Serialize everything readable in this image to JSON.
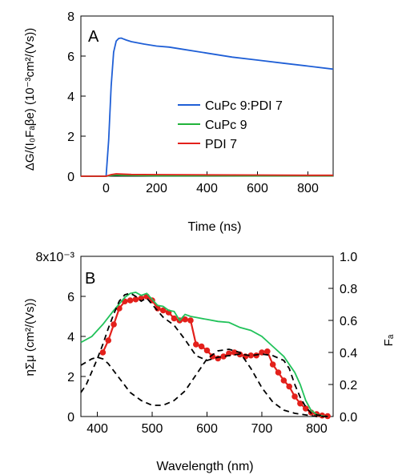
{
  "chart_data": [
    {
      "panel_label": "A",
      "type": "line",
      "xlabel": "Time (ns)",
      "ylabel": "ΔG/(I₀Fₐβe) (10⁻³cm²/(Vs))",
      "xlim": [
        -100,
        900
      ],
      "ylim": [
        0,
        8
      ],
      "xticks": [
        0,
        200,
        400,
        600,
        800
      ],
      "yticks": [
        0,
        2,
        4,
        6,
        8
      ],
      "legend_position": "center-right",
      "series": [
        {
          "name": "CuPc 9:PDI 7",
          "color": "#1f5fd6",
          "x": [
            -100,
            0,
            10,
            20,
            30,
            40,
            50,
            60,
            70,
            80,
            100,
            150,
            200,
            250,
            300,
            400,
            500,
            600,
            700,
            800,
            900
          ],
          "y": [
            0,
            0,
            1.8,
            4.5,
            6.2,
            6.75,
            6.88,
            6.9,
            6.85,
            6.8,
            6.72,
            6.6,
            6.5,
            6.45,
            6.35,
            6.15,
            5.95,
            5.8,
            5.65,
            5.5,
            5.35
          ]
        },
        {
          "name": "CuPc 9",
          "color": "#21b33a",
          "x": [
            -100,
            0,
            20,
            40,
            60,
            100,
            200,
            400,
            600,
            800,
            900
          ],
          "y": [
            0,
            0,
            0.04,
            0.06,
            0.05,
            0.04,
            0.03,
            0.03,
            0.02,
            0.02,
            0.02
          ]
        },
        {
          "name": "PDI 7",
          "color": "#e3201b",
          "x": [
            -100,
            0,
            20,
            40,
            60,
            100,
            200,
            400,
            600,
            800,
            900
          ],
          "y": [
            0,
            0,
            0.08,
            0.12,
            0.11,
            0.09,
            0.08,
            0.07,
            0.06,
            0.05,
            0.05
          ]
        }
      ]
    },
    {
      "panel_label": "B",
      "type": "line",
      "xlabel": "Wavelength (nm)",
      "ylabel": "ηΣμ (cm²/(Vs))",
      "ylabel_right": "Fₐ",
      "xlim": [
        370,
        830
      ],
      "ylim": [
        0,
        0.008
      ],
      "ylim_right": [
        0,
        1.0
      ],
      "xticks": [
        400,
        500,
        600,
        700,
        800
      ],
      "yticks": [
        0,
        2,
        4,
        6,
        8
      ],
      "ytick_labels": [
        "0",
        "2",
        "4",
        "6",
        "8x10⁻³"
      ],
      "yticks_right": [
        "0.0",
        "0.2",
        "0.4",
        "0.6",
        "0.8",
        "1.0"
      ],
      "series": [
        {
          "name": "",
          "style": "line-markers",
          "color": "#e3201b",
          "axis": "left",
          "x": [
            410,
            420,
            430,
            440,
            450,
            460,
            470,
            480,
            490,
            500,
            510,
            520,
            530,
            540,
            550,
            560,
            570,
            580,
            590,
            600,
            610,
            620,
            630,
            640,
            650,
            660,
            670,
            680,
            690,
            700,
            710,
            720,
            730,
            740,
            750,
            760,
            770,
            780,
            790,
            800,
            810,
            820
          ],
          "y": [
            3.2,
            3.8,
            4.6,
            5.4,
            5.75,
            5.8,
            5.85,
            5.9,
            6.0,
            5.8,
            5.4,
            5.3,
            5.2,
            4.9,
            4.8,
            4.85,
            4.8,
            3.6,
            3.5,
            3.3,
            3.0,
            2.9,
            3.0,
            3.15,
            3.2,
            3.1,
            3.0,
            3.05,
            3.05,
            3.2,
            3.25,
            2.6,
            2.2,
            1.8,
            1.5,
            1.0,
            0.65,
            0.4,
            0.2,
            0.12,
            0.05,
            0.02
          ]
        },
        {
          "name": "",
          "style": "solid",
          "color": "#21c25a",
          "axis": "left",
          "x": [
            370,
            390,
            410,
            430,
            450,
            460,
            470,
            480,
            490,
            500,
            510,
            520,
            530,
            540,
            550,
            560,
            570,
            580,
            600,
            620,
            640,
            660,
            680,
            700,
            720,
            740,
            760,
            770,
            780,
            790,
            800,
            810,
            820
          ],
          "y": [
            3.7,
            4.0,
            4.6,
            5.3,
            5.95,
            6.15,
            6.2,
            6.05,
            6.15,
            5.85,
            5.55,
            5.5,
            5.3,
            5.25,
            4.8,
            5.1,
            5.0,
            4.95,
            4.85,
            4.75,
            4.7,
            4.45,
            4.3,
            4.0,
            3.5,
            3.0,
            2.2,
            1.6,
            0.8,
            0.3,
            0.1,
            0.03,
            0.0
          ]
        },
        {
          "name": "",
          "style": "dashed",
          "color": "#000000",
          "axis": "right",
          "x": [
            370,
            380,
            390,
            400,
            410,
            420,
            430,
            440,
            450,
            460,
            470,
            480,
            490,
            500,
            520,
            540,
            560,
            580,
            600,
            620,
            640,
            660,
            680,
            700,
            720,
            740,
            750,
            760,
            770,
            780,
            790,
            800,
            820
          ],
          "y": [
            0.15,
            0.2,
            0.28,
            0.36,
            0.45,
            0.55,
            0.64,
            0.72,
            0.76,
            0.77,
            0.75,
            0.72,
            0.74,
            0.7,
            0.62,
            0.57,
            0.48,
            0.38,
            0.35,
            0.37,
            0.38,
            0.39,
            0.38,
            0.39,
            0.38,
            0.35,
            0.3,
            0.2,
            0.12,
            0.06,
            0.02,
            0.01,
            0.0
          ]
        },
        {
          "name": "",
          "style": "dashed",
          "color": "#000000",
          "axis": "right",
          "x": [
            370,
            380,
            390,
            400,
            410,
            420,
            440,
            460,
            480,
            500,
            520,
            540,
            560,
            580,
            600,
            620,
            640,
            660,
            680,
            700,
            720,
            740,
            760,
            780,
            800,
            820
          ],
          "y": [
            0.32,
            0.34,
            0.36,
            0.37,
            0.36,
            0.33,
            0.24,
            0.15,
            0.1,
            0.07,
            0.07,
            0.1,
            0.16,
            0.26,
            0.36,
            0.41,
            0.42,
            0.4,
            0.3,
            0.18,
            0.09,
            0.04,
            0.02,
            0.01,
            0.0,
            0.0
          ]
        }
      ]
    }
  ]
}
